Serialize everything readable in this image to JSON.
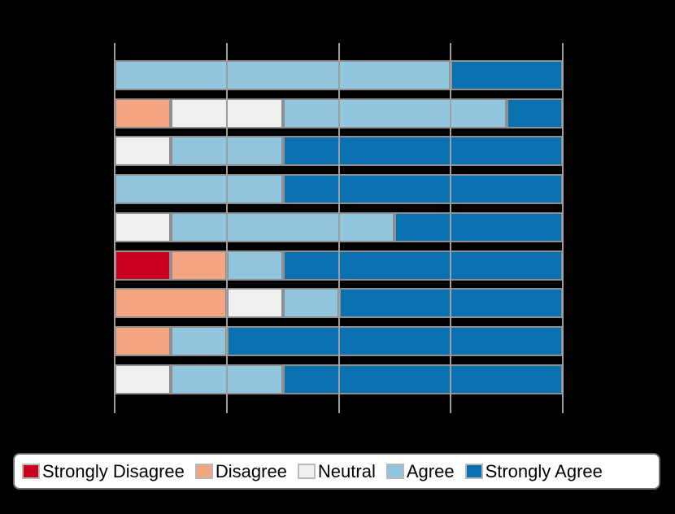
{
  "chart_data": {
    "type": "bar",
    "orientation": "horizontal",
    "stacked": true,
    "title": "",
    "xlabel": "",
    "ylabel": "",
    "background": "#000000",
    "axis": {
      "min": 0,
      "max": 100,
      "gridline_values": [
        0,
        25,
        50,
        75,
        100
      ],
      "gridlines_on": true,
      "tick_labels_visible": false
    },
    "series_order": [
      "Strongly Disagree",
      "Disagree",
      "Neutral",
      "Agree",
      "Strongly Agree"
    ],
    "palette": {
      "Strongly Disagree": "#ca0020",
      "Disagree": "#f4a582",
      "Neutral": "#f0f0f0",
      "Agree": "#92c5de",
      "Strongly Agree": "#0a71b1"
    },
    "rows_note": "9 unlabeled statement rows, top to bottom; values are percent of row total",
    "rows": [
      {
        "values": [
          0,
          0,
          0,
          75,
          25
        ]
      },
      {
        "values": [
          0,
          12.5,
          25,
          50,
          12.5
        ]
      },
      {
        "values": [
          0,
          0,
          12.5,
          25,
          62.5
        ]
      },
      {
        "values": [
          0,
          0,
          0,
          37.5,
          62.5
        ]
      },
      {
        "values": [
          0,
          0,
          12.5,
          50,
          37.5
        ]
      },
      {
        "values": [
          12.5,
          12.5,
          0,
          12.5,
          62.5
        ]
      },
      {
        "values": [
          0,
          25,
          12.5,
          12.5,
          50
        ]
      },
      {
        "values": [
          0,
          12.5,
          0,
          12.5,
          75
        ]
      },
      {
        "values": [
          0,
          0,
          12.5,
          25,
          62.5
        ]
      }
    ],
    "legend": {
      "position": "bottom",
      "background": "#ffffff",
      "entries": [
        "Strongly Disagree",
        "Disagree",
        "Neutral",
        "Agree",
        "Strongly Agree"
      ]
    },
    "grid_color": "#9e9e9e",
    "bar_edge_color": "#8f8f8f"
  }
}
